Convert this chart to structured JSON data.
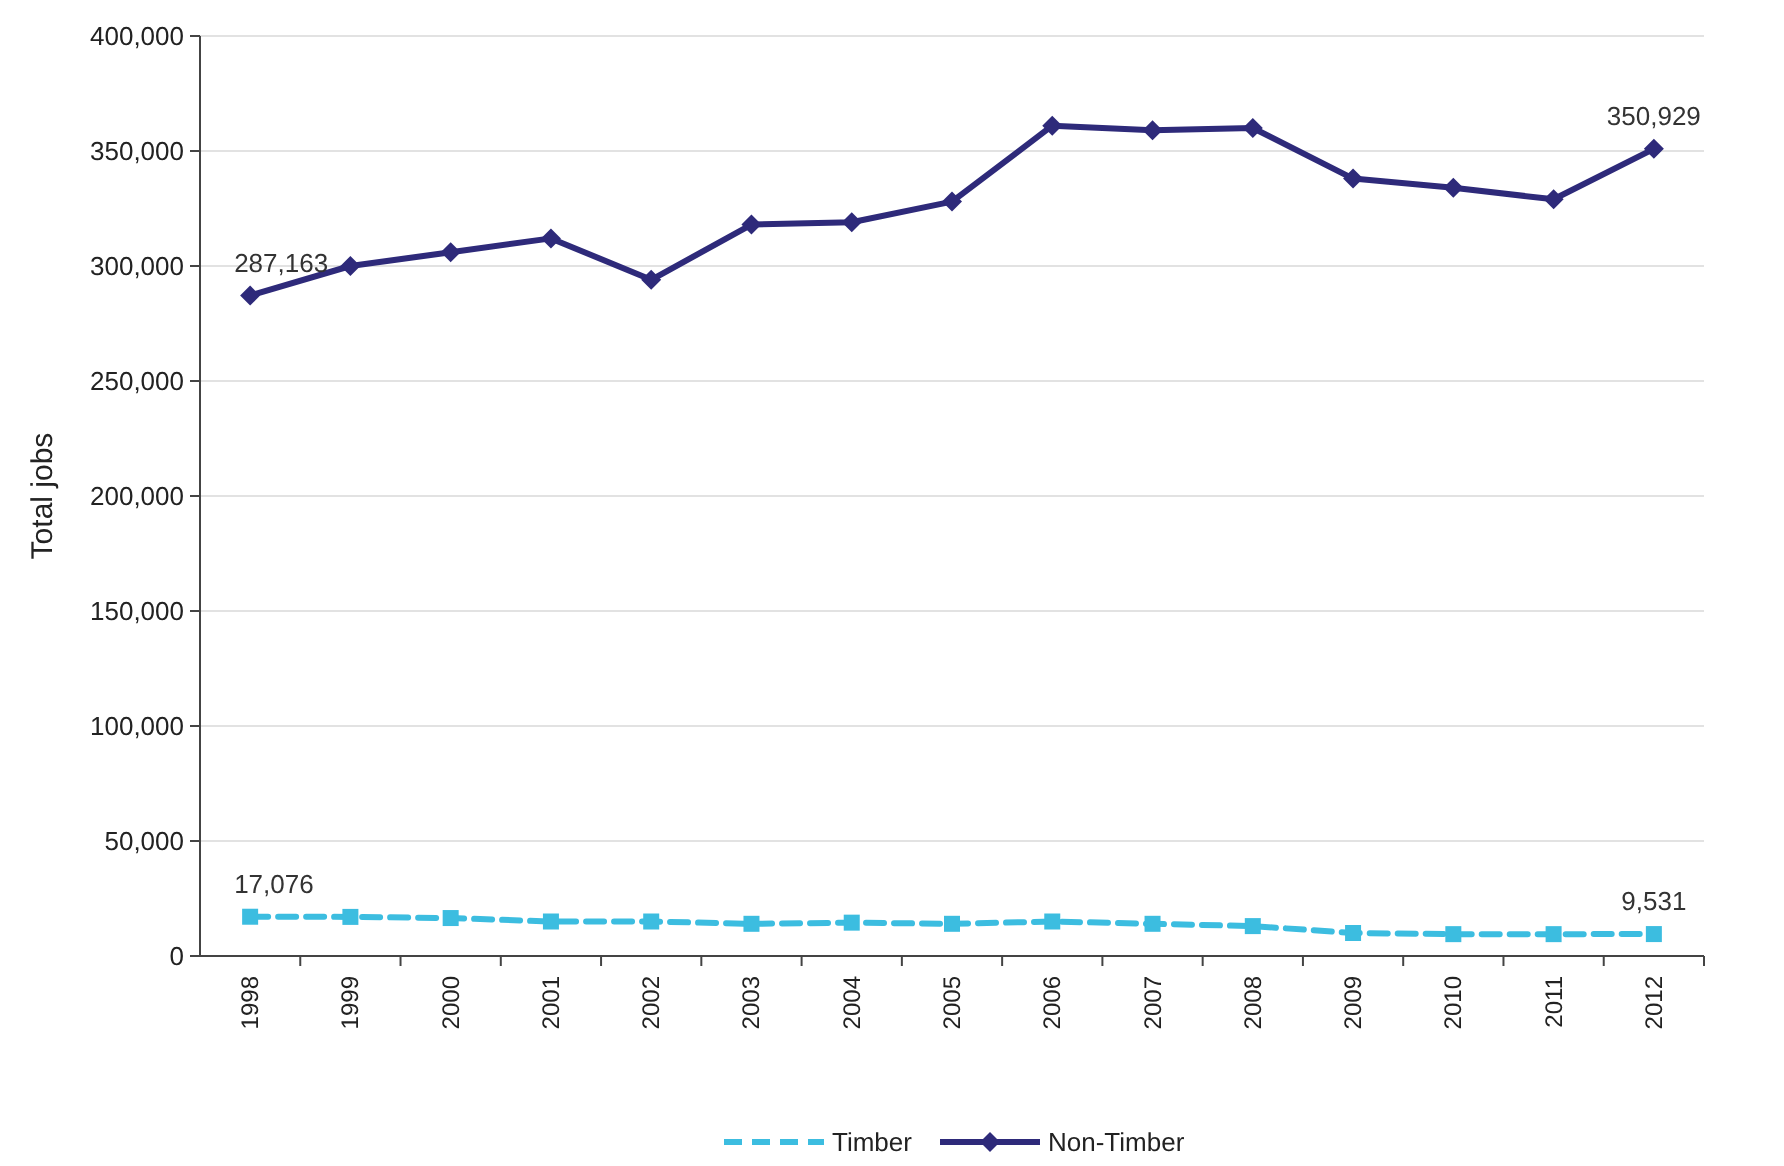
{
  "chart_data": {
    "type": "line",
    "ylabel": "Total jobs",
    "categories": [
      "1998",
      "1999",
      "2000",
      "2001",
      "2002",
      "2003",
      "2004",
      "2005",
      "2006",
      "2007",
      "2008",
      "2009",
      "2010",
      "2011",
      "2012"
    ],
    "series": [
      {
        "name": "Timber",
        "color": "#3cbde0",
        "line_style": "dashed",
        "marker": "square",
        "values": [
          17076,
          17000,
          16500,
          15000,
          15000,
          14000,
          14500,
          14000,
          15000,
          14000,
          13000,
          10000,
          9500,
          9500,
          9531
        ],
        "value_labels": [
          "17,076",
          null,
          null,
          null,
          null,
          null,
          null,
          null,
          null,
          null,
          null,
          null,
          null,
          null,
          "9,531"
        ]
      },
      {
        "name": "Non-Timber",
        "color": "#2e2a7a",
        "line_style": "solid",
        "marker": "diamond",
        "values": [
          287163,
          300000,
          306000,
          312000,
          294000,
          318000,
          319000,
          328000,
          361000,
          359000,
          360000,
          338000,
          334000,
          329000,
          350929
        ],
        "value_labels": [
          "287,163",
          null,
          null,
          null,
          null,
          null,
          null,
          null,
          null,
          null,
          null,
          null,
          null,
          null,
          "350,929"
        ]
      }
    ],
    "ylim": [
      0,
      400000
    ],
    "yticks": [
      {
        "value": 0,
        "label": "0"
      },
      {
        "value": 50000,
        "label": "50,000"
      },
      {
        "value": 100000,
        "label": "100,000"
      },
      {
        "value": 150000,
        "label": "150,000"
      },
      {
        "value": 200000,
        "label": "200,000"
      },
      {
        "value": 250000,
        "label": "250,000"
      },
      {
        "value": 300000,
        "label": "300,000"
      },
      {
        "value": 350000,
        "label": "350,000"
      },
      {
        "value": 400000,
        "label": "400,000"
      }
    ],
    "grid": "y",
    "legend": "bottom"
  }
}
